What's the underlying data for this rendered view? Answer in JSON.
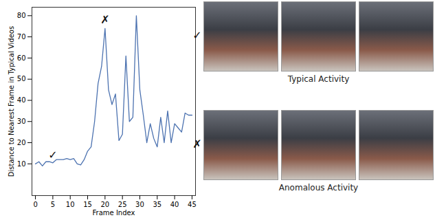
{
  "chart_data": {
    "type": "line",
    "x_label": "Frame Index",
    "y_label": "Distance to Nearest Frame in Typical Videos",
    "x": [
      0,
      1,
      2,
      3,
      4,
      5,
      6,
      7,
      8,
      9,
      10,
      11,
      12,
      13,
      14,
      15,
      16,
      17,
      18,
      19,
      20,
      21,
      22,
      23,
      24,
      25,
      26,
      27,
      28,
      29,
      30,
      31,
      32,
      33,
      34,
      35,
      36,
      37,
      38,
      39,
      40,
      41,
      42,
      43,
      44,
      45
    ],
    "values": [
      10,
      11,
      9,
      11,
      11,
      10.5,
      12,
      12,
      12,
      12.5,
      12,
      12.5,
      10,
      9.5,
      12,
      16,
      18,
      30,
      48,
      56,
      74,
      45,
      38,
      43,
      21,
      24,
      61,
      30,
      32,
      80,
      45,
      33,
      20,
      29,
      22,
      18,
      32,
      20,
      35,
      20,
      29,
      27,
      25,
      34,
      33,
      33
    ],
    "color": "#4c72b0",
    "xlim": [
      -1,
      46
    ],
    "xticks": [
      0,
      5,
      10,
      15,
      20,
      25,
      30,
      35,
      40,
      45
    ],
    "ylim": [
      -5,
      84
    ],
    "yticks": [
      10,
      20,
      30,
      40,
      50,
      60,
      70,
      80
    ],
    "grid": false,
    "annotations": [
      {
        "x": 5,
        "y": 14,
        "text": "✓"
      },
      {
        "x": 20,
        "y": 78,
        "text": "✗"
      }
    ]
  },
  "panels": [
    {
      "marker": "✓",
      "label": "Typical Activity"
    },
    {
      "marker": "✗",
      "label": "Anomalous Activity"
    }
  ]
}
